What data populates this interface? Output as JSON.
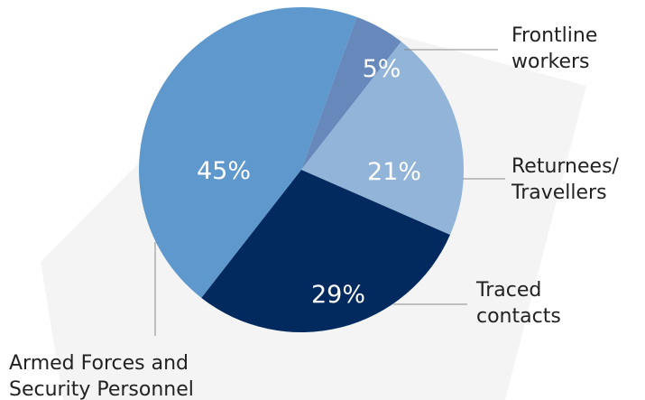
{
  "chart_data": {
    "type": "pie",
    "title": "",
    "slices": [
      {
        "category": [
          "Frontline",
          "workers"
        ],
        "value": 5,
        "label": "5%",
        "color": "#6688bb"
      },
      {
        "category": [
          "Returnees/",
          "Travellers"
        ],
        "value": 21,
        "label": "21%",
        "color": "#93b4d9"
      },
      {
        "category": [
          "Traced",
          "contacts"
        ],
        "value": 29,
        "label": "29%",
        "color": "#022a5e"
      },
      {
        "category": [
          "Armed Forces and",
          "Security Personnel"
        ],
        "value": 45,
        "label": "45%",
        "color": "#5e98cc"
      }
    ],
    "start_angle_deg": 20,
    "direction": "clockwise"
  },
  "background": {
    "shadow_color": "#f4f4f4"
  }
}
